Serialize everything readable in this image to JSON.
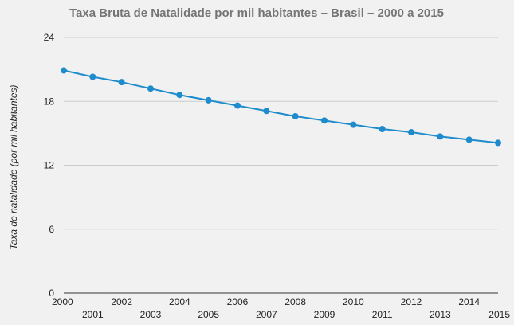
{
  "chart_data": {
    "type": "line",
    "title": "Taxa Bruta de Natalidade por mil habitantes – Brasil – 2000 a 2015",
    "xlabel": "",
    "ylabel": "Taxa de natalidade (por mil habitantes)",
    "ylim": [
      0,
      24
    ],
    "yticks": [
      "0",
      "6",
      "12",
      "18",
      "24"
    ],
    "grid": true,
    "legend": "none",
    "categories": [
      "2000",
      "2001",
      "2002",
      "2003",
      "2004",
      "2005",
      "2006",
      "2007",
      "2008",
      "2009",
      "2010",
      "2011",
      "2012",
      "2013",
      "2014",
      "2015"
    ],
    "series": [
      {
        "color": "#1e8ccc",
        "values": [
          20.9,
          20.3,
          19.8,
          19.2,
          18.6,
          18.1,
          17.6,
          17.1,
          16.6,
          16.2,
          15.8,
          15.4,
          15.1,
          14.7,
          14.4,
          14.1
        ]
      }
    ]
  }
}
